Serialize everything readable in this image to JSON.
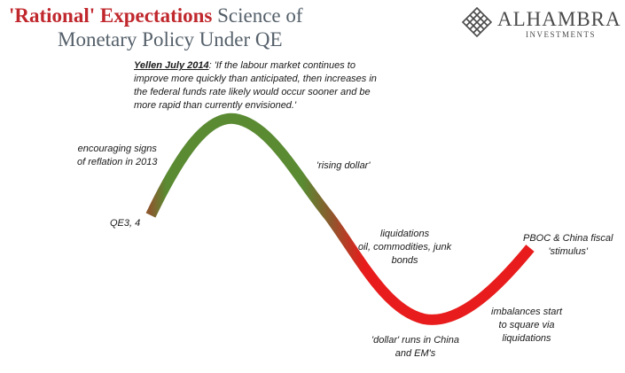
{
  "title": {
    "highlight": "'Rational' Expectations",
    "rest": "Science of",
    "line2": "Monetary Policy Under QE"
  },
  "logo": {
    "name": "ALHAMBRA",
    "subtitle": "INVESTMENTS",
    "icon": "diamond-lattice-icon"
  },
  "quote": {
    "source": "Yellen July 2014",
    "text": ": 'If the labour market continues to improve more quickly than anticipated, then increases in the federal funds rate likely would occur sooner and be more rapid than currently envisioned.'"
  },
  "annotations": {
    "qe": "QE3, 4",
    "reflation": [
      "encouraging signs",
      "of reflation in 2013"
    ],
    "rising_dollar": "'rising dollar'",
    "liquidations": [
      "liquidations",
      "oil, commodities, junk",
      "bonds"
    ],
    "dollar_runs": [
      "'dollar' runs in China",
      "and EM's"
    ],
    "imbalances": [
      "imbalances start",
      "to square via",
      "liquidations"
    ],
    "pboc": [
      "PBOC & China fiscal",
      "'stimulus'"
    ]
  },
  "colors": {
    "title_red": "#c0282d",
    "title_gray": "#55606a",
    "curve_green": "#5a8a32",
    "curve_brown": "#8a5a2e",
    "curve_red": "#e81c1c"
  }
}
